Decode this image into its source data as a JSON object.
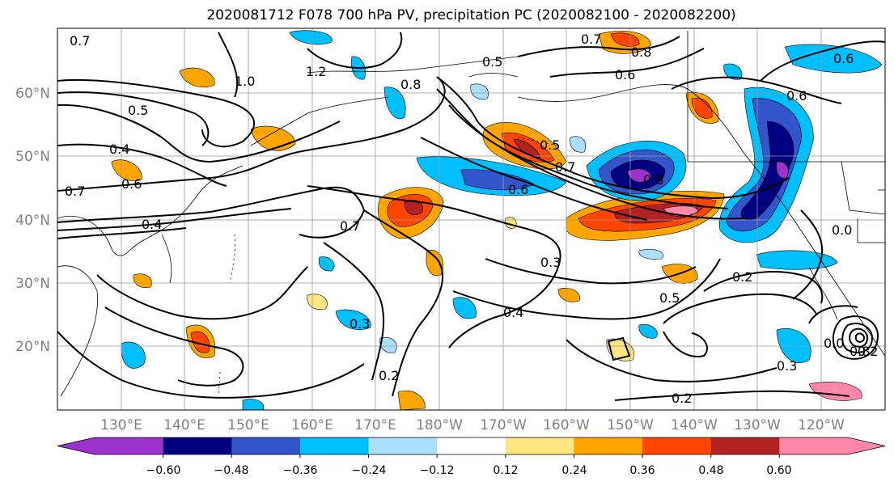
{
  "title": "2020081712 F078 700 hPa PV, precipitation PC (2020082100 - 2020082200)",
  "axes": {
    "lat_labels": [
      "60°N",
      "50°N",
      "40°N",
      "30°N",
      "20°N"
    ],
    "lon_labels": [
      "130°E",
      "140°E",
      "150°E",
      "160°E",
      "170°E",
      "180°W",
      "170°W",
      "160°W",
      "150°W",
      "140°W",
      "130°W",
      "120°W"
    ]
  },
  "colorbar": {
    "colors": [
      "#9933cc",
      "#000080",
      "#3355cc",
      "#00bfff",
      "#aadfff",
      "#ffffff",
      "#ffe680",
      "#ffa500",
      "#ff4500",
      "#b22222",
      "#ff88aa"
    ],
    "tick_labels": [
      "−0.60",
      "−0.48",
      "−0.36",
      "−0.24",
      "−0.12",
      "0.12",
      "0.24",
      "0.36",
      "0.48",
      "0.60"
    ]
  },
  "contour_labels": [
    "0.7",
    "0.5",
    "0.4",
    "0.6",
    "0.7",
    "0.4",
    "1.0",
    "1.2",
    "0.8",
    "0.7",
    "0.5",
    "0.6",
    "0.8",
    "0.6",
    "0.5",
    "0.7",
    "0.6",
    "0.8",
    "0.6",
    "0.7",
    "0.3",
    "0.4",
    "0.3",
    "0.2",
    "0.5",
    "0.2",
    "0.3",
    "0.2",
    "0.0",
    "0.0",
    "0.8",
    "0.2"
  ]
}
